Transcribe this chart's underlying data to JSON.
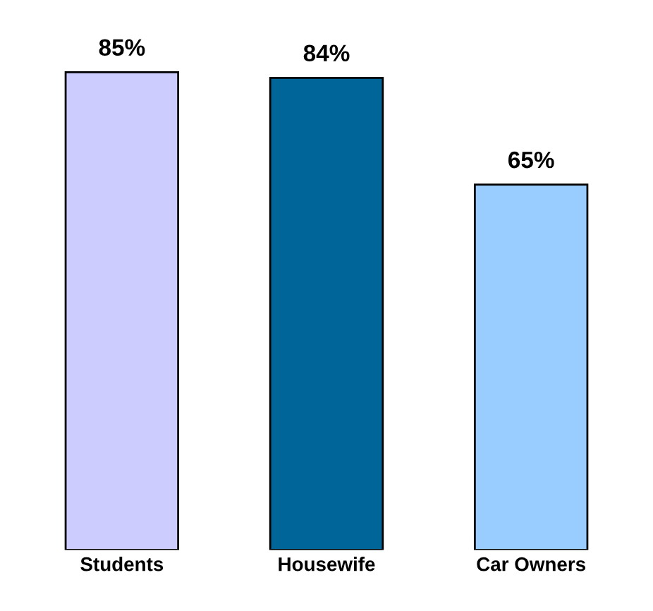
{
  "chart_data": {
    "type": "bar",
    "categories": [
      "Students",
      "Housewife",
      "Car Owners"
    ],
    "values": [
      85,
      84,
      65
    ],
    "colors": [
      "#ccccff",
      "#006699",
      "#99ccff"
    ],
    "value_labels": [
      "85%",
      "84%",
      "65%"
    ]
  }
}
